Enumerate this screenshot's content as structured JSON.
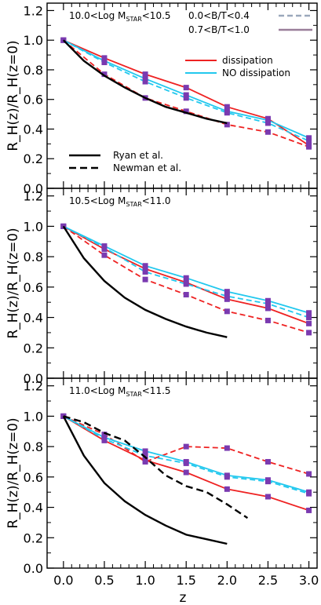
{
  "chart_data": {
    "type": "line",
    "xlabel": "z",
    "ylabel": "R_H(z)/R_H(z=0)",
    "xlim": [
      -0.2,
      3.1
    ],
    "ylim": [
      0.0,
      1.25
    ],
    "xticks": [
      "0.0",
      "0.5",
      "1.0",
      "1.5",
      "2.0",
      "2.5",
      "3.0"
    ],
    "yticks": [
      "0.0",
      "0.2",
      "0.4",
      "0.6",
      "0.8",
      "1.0",
      "1.2"
    ],
    "legend": {
      "bt_low": "0.0<B/T<0.4",
      "bt_high": "0.7<B/T<1.0",
      "dissipation": "dissipation",
      "no_dissipation": "NO dissipation",
      "ryan": "Ryan et al.",
      "newman": "Newman et al."
    },
    "colors": {
      "dissipation": "#ee2222",
      "no_dissipation": "#22c8ee",
      "bt_low": "#9aa8bc",
      "bt_high": "#9a7e9a",
      "marker": "#7a3ab0",
      "observations": "#000000"
    },
    "panels": [
      {
        "label_prefix": "10.0<Log M",
        "label_sub": "STAR",
        "label_suffix": "<10.5",
        "series": [
          {
            "name": "dissipation",
            "style": "solid",
            "color": "dissipation",
            "x": [
              0,
              0.5,
              1.0,
              1.5,
              2.0,
              2.5,
              3.0
            ],
            "y": [
              1.0,
              0.88,
              0.77,
              0.68,
              0.55,
              0.47,
              0.29
            ]
          },
          {
            "name": "",
            "style": "dashed",
            "color": "dissipation",
            "x": [
              0,
              0.5,
              1.0,
              1.5,
              2.0,
              2.5,
              3.0
            ],
            "y": [
              1.0,
              0.77,
              0.61,
              0.52,
              0.43,
              0.38,
              0.28
            ]
          },
          {
            "name": "NO dissipation",
            "style": "solid",
            "color": "no_dissipation",
            "x": [
              0,
              0.5,
              1.0,
              1.5,
              2.0,
              2.5,
              3.0
            ],
            "y": [
              1.0,
              0.86,
              0.74,
              0.63,
              0.52,
              0.46,
              0.34
            ]
          },
          {
            "name": "",
            "style": "dashed",
            "color": "no_dissipation",
            "x": [
              0,
              0.5,
              1.0,
              1.5,
              2.0,
              2.5,
              3.0
            ],
            "y": [
              1.0,
              0.85,
              0.72,
              0.61,
              0.51,
              0.44,
              0.32
            ]
          },
          {
            "name": "Ryan et al.",
            "style": "solid",
            "color": "observations",
            "x": [
              0,
              0.25,
              0.5,
              0.75,
              1.0,
              1.25,
              1.5,
              1.75,
              2.0
            ],
            "y": [
              1.0,
              0.86,
              0.76,
              0.68,
              0.61,
              0.55,
              0.51,
              0.47,
              0.44
            ]
          }
        ]
      },
      {
        "label_prefix": "10.5<Log M",
        "label_sub": "STAR",
        "label_suffix": "<11.0",
        "series": [
          {
            "name": "dissipation",
            "style": "solid",
            "color": "dissipation",
            "x": [
              0,
              0.5,
              1.0,
              1.5,
              2.0,
              2.5,
              3.0
            ],
            "y": [
              1.0,
              0.85,
              0.72,
              0.63,
              0.52,
              0.46,
              0.36
            ]
          },
          {
            "name": "",
            "style": "dashed",
            "color": "dissipation",
            "x": [
              0,
              0.5,
              1.0,
              1.5,
              2.0,
              2.5,
              3.0
            ],
            "y": [
              1.0,
              0.81,
              0.65,
              0.55,
              0.44,
              0.38,
              0.3
            ]
          },
          {
            "name": "NO dissipation",
            "style": "solid",
            "color": "no_dissipation",
            "x": [
              0,
              0.5,
              1.0,
              1.5,
              2.0,
              2.5,
              3.0
            ],
            "y": [
              1.0,
              0.87,
              0.74,
              0.66,
              0.57,
              0.51,
              0.43
            ]
          },
          {
            "name": "",
            "style": "dashed",
            "color": "no_dissipation",
            "x": [
              0,
              0.5,
              1.0,
              1.5,
              2.0,
              2.5,
              3.0
            ],
            "y": [
              1.0,
              0.86,
              0.7,
              0.62,
              0.54,
              0.49,
              0.4
            ]
          },
          {
            "name": "Ryan et al.",
            "style": "solid",
            "color": "observations",
            "x": [
              0,
              0.25,
              0.5,
              0.75,
              1.0,
              1.25,
              1.5,
              1.75,
              2.0
            ],
            "y": [
              1.0,
              0.79,
              0.64,
              0.53,
              0.45,
              0.39,
              0.34,
              0.3,
              0.27
            ]
          }
        ]
      },
      {
        "label_prefix": "11.0<Log M",
        "label_sub": "STAR",
        "label_suffix": "<11.5",
        "series": [
          {
            "name": "dissipation",
            "style": "solid",
            "color": "dissipation",
            "x": [
              0,
              0.5,
              1.0,
              1.5,
              2.0,
              2.5,
              3.0
            ],
            "y": [
              1.0,
              0.84,
              0.71,
              0.63,
              0.52,
              0.47,
              0.38
            ]
          },
          {
            "name": "",
            "style": "dashed",
            "color": "dissipation",
            "x": [
              0,
              0.5,
              1.0,
              1.5,
              2.0,
              2.5,
              3.0
            ],
            "y": [
              1.0,
              0.88,
              0.7,
              0.8,
              0.79,
              0.7,
              0.62
            ]
          },
          {
            "name": "NO dissipation",
            "style": "solid",
            "color": "no_dissipation",
            "x": [
              0,
              0.5,
              1.0,
              1.5,
              2.0,
              2.5,
              3.0
            ],
            "y": [
              1.0,
              0.86,
              0.77,
              0.7,
              0.61,
              0.58,
              0.5
            ]
          },
          {
            "name": "",
            "style": "dashed",
            "color": "no_dissipation",
            "x": [
              0,
              0.5,
              1.0,
              1.5,
              2.0,
              2.5,
              3.0
            ],
            "y": [
              1.0,
              0.85,
              0.74,
              0.69,
              0.6,
              0.57,
              0.49
            ]
          },
          {
            "name": "Ryan et al.",
            "style": "solid",
            "color": "observations",
            "x": [
              0,
              0.25,
              0.5,
              0.75,
              1.0,
              1.25,
              1.5,
              1.75,
              2.0
            ],
            "y": [
              1.0,
              0.74,
              0.56,
              0.44,
              0.35,
              0.28,
              0.22,
              0.19,
              0.16
            ]
          },
          {
            "name": "Newman et al.",
            "style": "dashed",
            "color": "observations",
            "x": [
              0,
              0.25,
              0.5,
              0.75,
              1.0,
              1.25,
              1.5,
              1.75,
              2.0,
              2.25
            ],
            "y": [
              1.0,
              0.96,
              0.89,
              0.84,
              0.73,
              0.61,
              0.54,
              0.5,
              0.42,
              0.33
            ]
          }
        ]
      }
    ]
  }
}
